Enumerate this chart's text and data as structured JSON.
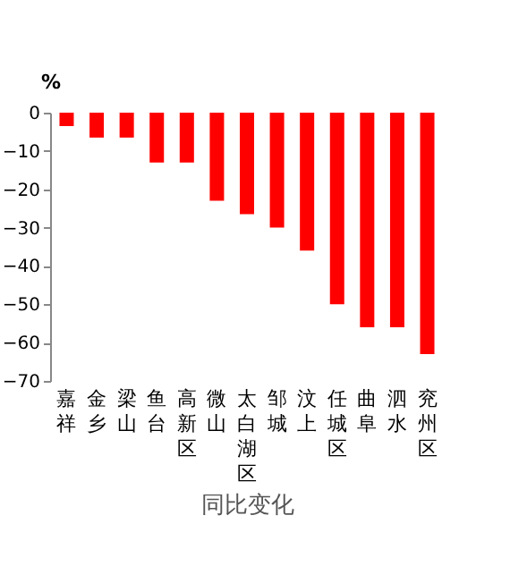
{
  "chart_data": {
    "type": "bar",
    "xlabel": "同比变化",
    "ylabel": "%",
    "categories": [
      "嘉祥",
      "金乡",
      "梁山",
      "鱼台",
      "高新区",
      "微山",
      "太白湖区",
      "邹城",
      "汶上",
      "任城区",
      "曲阜",
      "泗水",
      "兖州区"
    ],
    "values": [
      -3.5,
      -6.5,
      -6.5,
      -13,
      -13,
      -23,
      -26.5,
      -30,
      -36,
      -50,
      -56,
      -56,
      -63
    ],
    "color": "#ff0000",
    "ylim": [
      -70,
      0
    ],
    "yticks": [
      -70,
      -60,
      -50,
      -40,
      -30,
      -20,
      -10,
      0
    ],
    "grid": false
  }
}
